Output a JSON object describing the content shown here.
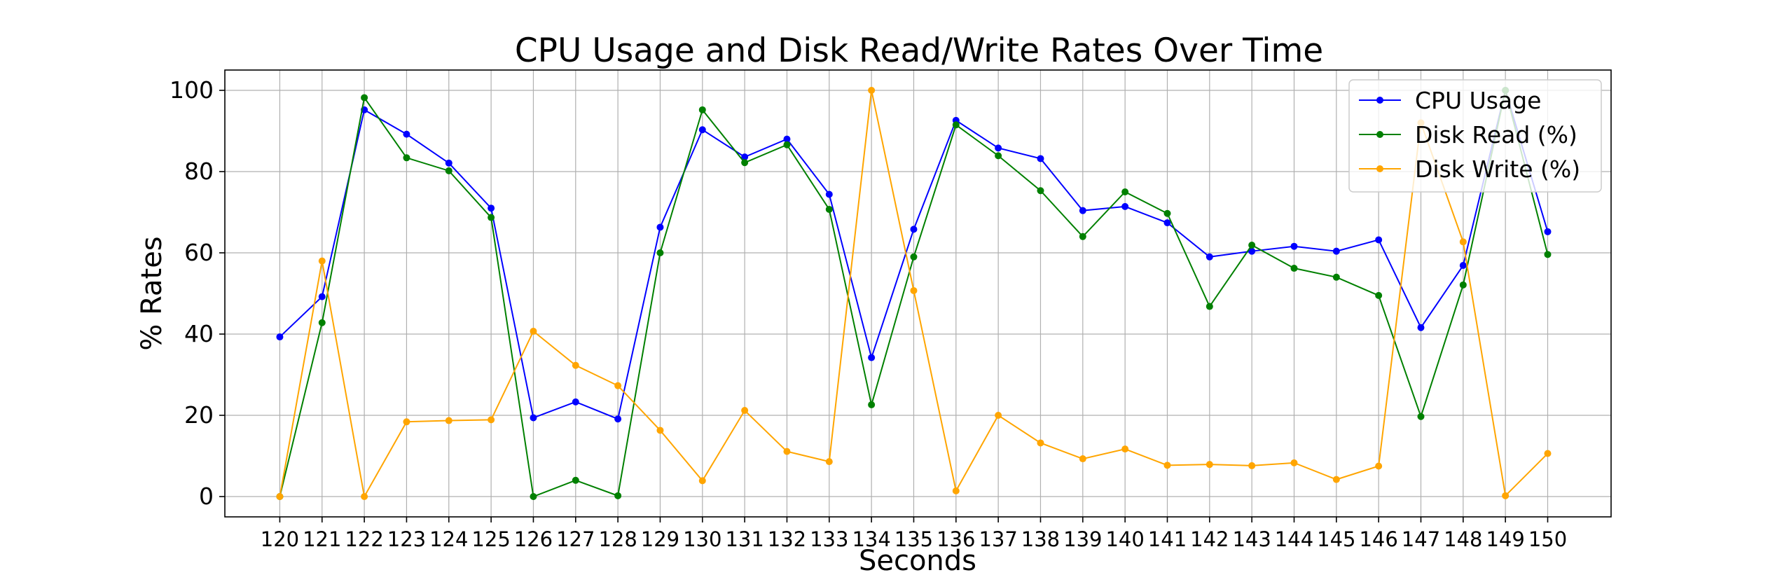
{
  "chart_data": {
    "type": "line",
    "title": "CPU Usage and Disk Read/Write Rates Over Time",
    "xlabel": "Seconds",
    "ylabel": "% Rates",
    "x": [
      120,
      121,
      122,
      123,
      124,
      125,
      126,
      127,
      128,
      129,
      130,
      131,
      132,
      133,
      134,
      135,
      136,
      137,
      138,
      139,
      140,
      141,
      142,
      143,
      144,
      145,
      146,
      147,
      148,
      149,
      150
    ],
    "xticks": [
      "120",
      "121",
      "122",
      "123",
      "124",
      "125",
      "126",
      "127",
      "128",
      "129",
      "130",
      "131",
      "132",
      "133",
      "134",
      "135",
      "136",
      "137",
      "138",
      "139",
      "140",
      "141",
      "142",
      "143",
      "144",
      "145",
      "146",
      "147",
      "148",
      "149",
      "150"
    ],
    "yticks": [
      "0",
      "20",
      "40",
      "60",
      "80",
      "100"
    ],
    "xlim": [
      118.7,
      151.5
    ],
    "ylim": [
      -5,
      105
    ],
    "grid": true,
    "legend_position": "top-right",
    "series": [
      {
        "name": "CPU Usage",
        "color": "#0000ff",
        "values": [
          39.3,
          49.2,
          95.2,
          89.2,
          82.1,
          71.0,
          19.4,
          23.3,
          19.1,
          66.3,
          90.3,
          83.6,
          88.0,
          74.4,
          34.2,
          65.8,
          92.6,
          85.8,
          83.2,
          70.4,
          71.4,
          67.4,
          59.0,
          60.4,
          61.6,
          60.4,
          63.2,
          41.6,
          56.9,
          100.0,
          65.2
        ]
      },
      {
        "name": "Disk Read (%)",
        "color": "#008000",
        "values": [
          0.0,
          42.8,
          98.2,
          83.4,
          80.2,
          68.7,
          0.0,
          4.0,
          0.2,
          60.0,
          95.2,
          82.2,
          86.6,
          70.7,
          22.6,
          59.0,
          91.5,
          83.9,
          75.3,
          64.0,
          75.0,
          69.7,
          46.8,
          61.9,
          56.2,
          54.0,
          49.5,
          19.7,
          52.1,
          100.0,
          59.6
        ]
      },
      {
        "name": "Disk Write (%)",
        "color": "#ffa500",
        "values": [
          0.0,
          58.0,
          0.0,
          18.4,
          18.7,
          18.9,
          40.7,
          32.3,
          27.3,
          16.3,
          3.9,
          21.2,
          11.1,
          8.6,
          100.0,
          50.7,
          1.4,
          20.0,
          13.2,
          9.3,
          11.7,
          7.7,
          7.9,
          7.6,
          8.3,
          4.2,
          7.5,
          92.0,
          62.7,
          0.2,
          10.6
        ]
      }
    ]
  }
}
